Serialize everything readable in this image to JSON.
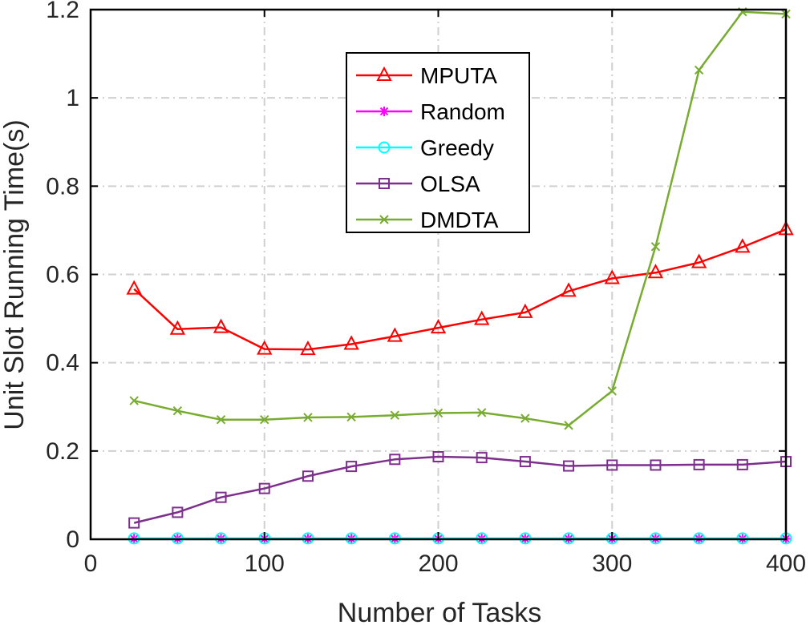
{
  "chart_data": {
    "type": "line",
    "title": "",
    "xlabel": "Number of Tasks",
    "ylabel": "Unit Slot Running Time(s)",
    "xlim": [
      0,
      400
    ],
    "ylim": [
      0,
      1.2
    ],
    "xticks": [
      0,
      100,
      200,
      300,
      400
    ],
    "yticks": [
      0,
      0.2,
      0.4,
      0.6,
      0.8,
      1,
      1.2
    ],
    "x_tick_labels": [
      "0",
      "100",
      "200",
      "300",
      "400"
    ],
    "y_tick_labels": [
      "0",
      "0.2",
      "0.4",
      "0.6",
      "0.8",
      "1",
      "1.2"
    ],
    "grid": true,
    "legend_position": "top-center",
    "x": [
      25,
      50,
      75,
      100,
      125,
      150,
      175,
      200,
      225,
      250,
      275,
      300,
      325,
      350,
      375,
      400
    ],
    "series": [
      {
        "name": "MPUTA",
        "color": "#ff0000",
        "marker": "triangle",
        "values": [
          0.567,
          0.476,
          0.48,
          0.431,
          0.43,
          0.442,
          0.46,
          0.479,
          0.498,
          0.514,
          0.562,
          0.591,
          0.604,
          0.627,
          0.662,
          0.702
        ]
      },
      {
        "name": "Random",
        "color": "#ff00ff",
        "marker": "star",
        "values": [
          0.001,
          0.001,
          0.001,
          0.001,
          0.001,
          0.001,
          0.001,
          0.001,
          0.001,
          0.001,
          0.001,
          0.001,
          0.001,
          0.001,
          0.001,
          0.001
        ]
      },
      {
        "name": "Greedy",
        "color": "#00ffff",
        "marker": "circle",
        "values": [
          0.002,
          0.002,
          0.002,
          0.002,
          0.002,
          0.002,
          0.002,
          0.002,
          0.002,
          0.002,
          0.002,
          0.002,
          0.002,
          0.002,
          0.002,
          0.002
        ]
      },
      {
        "name": "OLSA",
        "color": "#7e2f8e",
        "marker": "square",
        "values": [
          0.037,
          0.061,
          0.095,
          0.115,
          0.143,
          0.165,
          0.181,
          0.187,
          0.185,
          0.176,
          0.166,
          0.168,
          0.168,
          0.169,
          0.169,
          0.176
        ]
      },
      {
        "name": "DMDTA",
        "color": "#77ac30",
        "marker": "x",
        "values": [
          0.314,
          0.291,
          0.271,
          0.271,
          0.276,
          0.277,
          0.281,
          0.286,
          0.287,
          0.274,
          0.258,
          0.336,
          0.663,
          1.063,
          1.195,
          1.19
        ]
      }
    ]
  }
}
